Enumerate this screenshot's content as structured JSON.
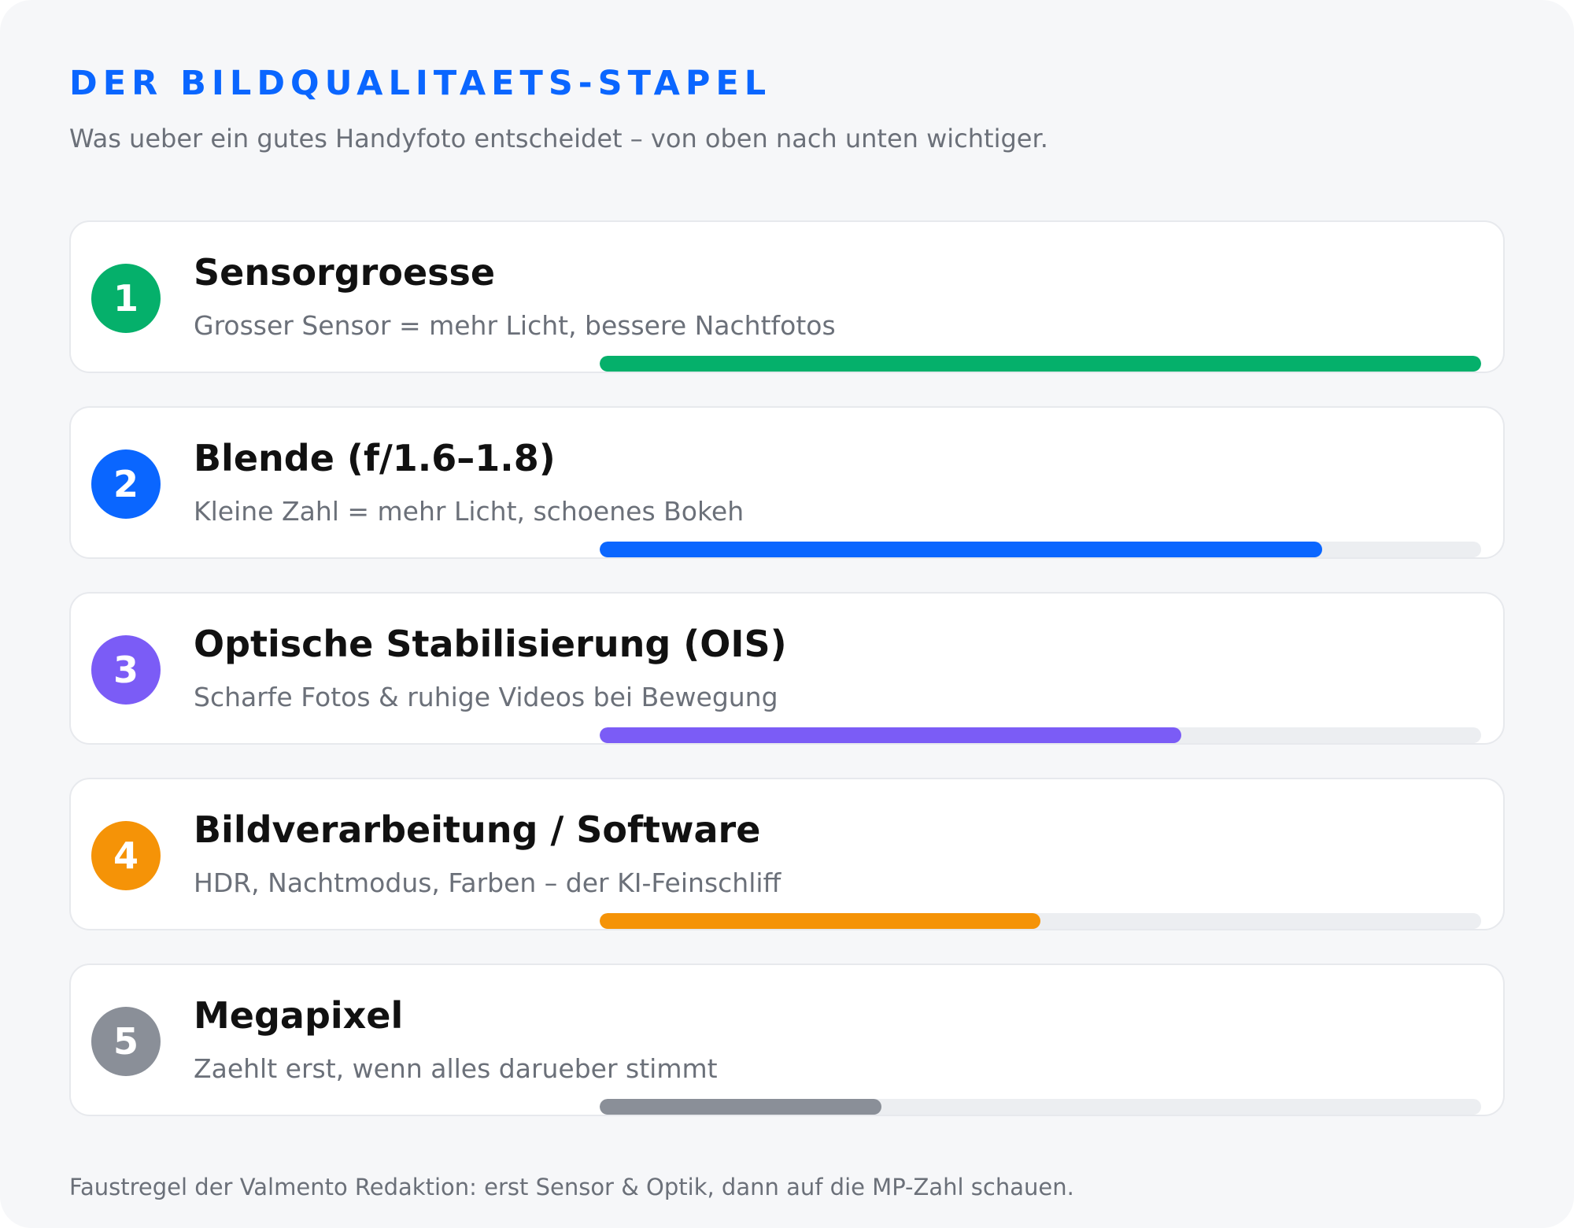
{
  "header": {
    "title": "DER BILDQUALITAETS-STAPEL",
    "subtitle": "Was ueber ein gutes Handyfoto entscheidet – von oben nach unten wichtiger."
  },
  "colors": {
    "accent": "#0a66ff",
    "track": "#eceef1"
  },
  "items": [
    {
      "rank": "1",
      "title": "Sensorgroesse",
      "description": "Grosser Sensor = mehr Licht, bessere Nachtfotos",
      "importance": 1.0,
      "color": "#05b06b"
    },
    {
      "rank": "2",
      "title": "Blende (f/1.6–1.8)",
      "description": "Kleine Zahl = mehr Licht, schoenes Bokeh",
      "importance": 0.82,
      "color": "#0a66ff"
    },
    {
      "rank": "3",
      "title": "Optische Stabilisierung (OIS)",
      "description": "Scharfe Fotos & ruhige Videos bei Bewegung",
      "importance": 0.66,
      "color": "#7b5cf6"
    },
    {
      "rank": "4",
      "title": "Bildverarbeitung / Software",
      "description": "HDR, Nachtmodus, Farben – der KI-Feinschliff",
      "importance": 0.5,
      "color": "#f59307"
    },
    {
      "rank": "5",
      "title": "Megapixel",
      "description": "Zaehlt erst, wenn alles darueber stimmt",
      "importance": 0.32,
      "color": "#8a8f98"
    }
  ],
  "footer": {
    "note": "Faustregel der Valmento Redaktion: erst Sensor & Optik, dann auf die MP-Zahl schauen."
  }
}
